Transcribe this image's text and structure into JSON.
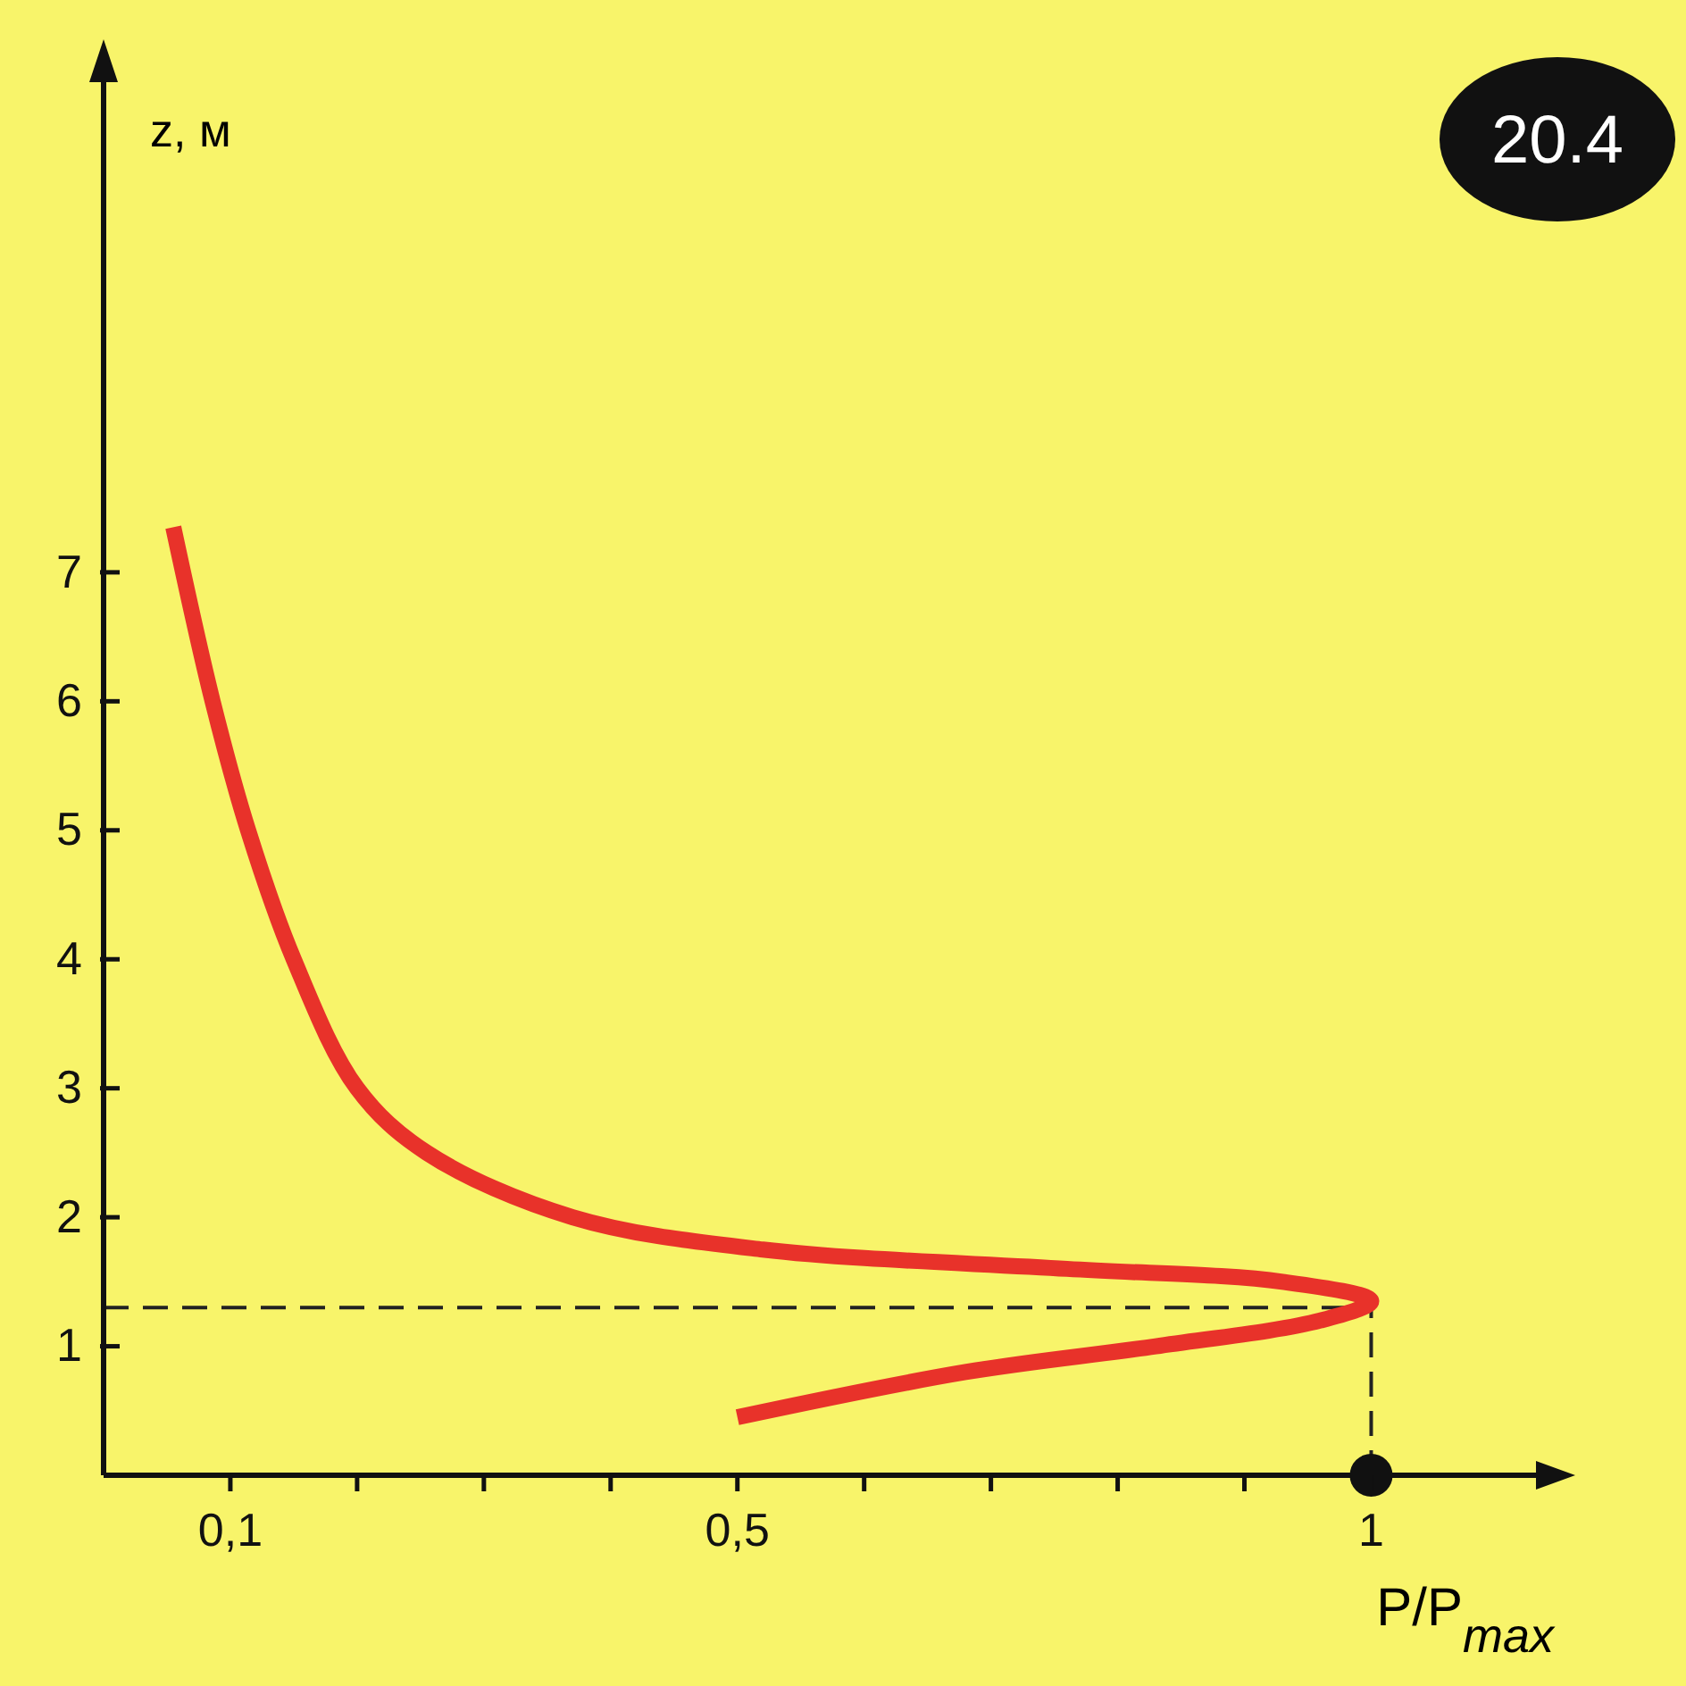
{
  "chart_data": {
    "type": "line",
    "title": "20.4",
    "xlabel": "P/P$_{max}$",
    "ylabel": "z, м",
    "xlim": [
      0,
      1.13
    ],
    "ylim": [
      0,
      10.8
    ],
    "xticks": [
      {
        "value": 0.1,
        "label": "0,1"
      },
      {
        "value": 0.2,
        "label": null
      },
      {
        "value": 0.3,
        "label": null
      },
      {
        "value": 0.4,
        "label": null
      },
      {
        "value": 0.5,
        "label": "0,5"
      },
      {
        "value": 0.6,
        "label": null
      },
      {
        "value": 0.7,
        "label": null
      },
      {
        "value": 0.8,
        "label": null
      },
      {
        "value": 0.9,
        "label": null
      },
      {
        "value": 1,
        "label": "1"
      }
    ],
    "yticks": [
      1,
      2,
      3,
      4,
      5,
      6,
      7
    ],
    "grid": false,
    "series": [
      {
        "color": "#e8322a",
        "marker": "none",
        "line_style": "solid",
        "x": [
          0.055,
          0.086,
          0.114,
          0.15,
          0.2,
          0.255,
          0.37,
          0.52,
          0.76,
          0.93,
          1.0,
          0.96,
          0.83,
          0.68,
          0.5
        ],
        "values": [
          7.35,
          6,
          5,
          4,
          3,
          2.5,
          2,
          1.75,
          1.6,
          1.5,
          1.35,
          1.2,
          1.0,
          0.8,
          0.45
        ]
      },
      {
        "type": "scatter",
        "color": "#111111",
        "marker": "circle",
        "x": [
          1
        ],
        "values": [
          0
        ]
      }
    ],
    "ref_lines": [
      {
        "axis": "y",
        "value": 1.3,
        "line_style": "dashed",
        "color": "#222222"
      },
      {
        "axis": "x",
        "value": 1,
        "line_style": "dashed",
        "color": "#222222"
      }
    ]
  }
}
